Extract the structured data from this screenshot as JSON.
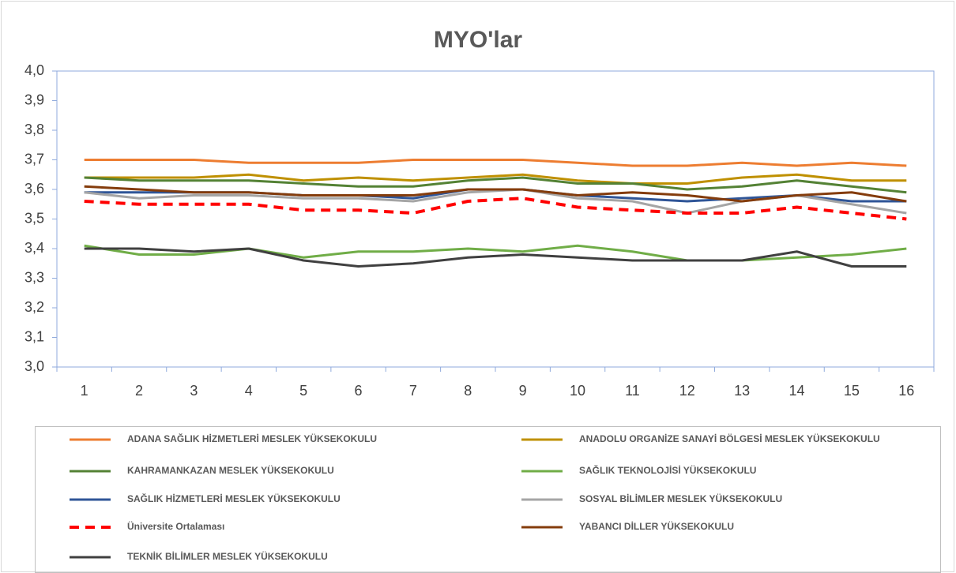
{
  "chart_data": {
    "type": "line",
    "title": "MYO'lar",
    "categories": [
      "1",
      "2",
      "3",
      "4",
      "5",
      "6",
      "7",
      "8",
      "9",
      "10",
      "11",
      "12",
      "13",
      "14",
      "15",
      "16"
    ],
    "ylim": [
      3.0,
      4.0
    ],
    "yticks": [
      {
        "value": 3.0,
        "label": "3,0"
      },
      {
        "value": 3.1,
        "label": "3,1"
      },
      {
        "value": 3.2,
        "label": "3,2"
      },
      {
        "value": 3.3,
        "label": "3,3"
      },
      {
        "value": 3.4,
        "label": "3,4"
      },
      {
        "value": 3.5,
        "label": "3,5"
      },
      {
        "value": 3.6,
        "label": "3,6"
      },
      {
        "value": 3.7,
        "label": "3,7"
      },
      {
        "value": 3.8,
        "label": "3,8"
      },
      {
        "value": 3.9,
        "label": "3,9"
      },
      {
        "value": 4.0,
        "label": "4,0"
      }
    ],
    "grid": false,
    "legend": "bottom",
    "series": [
      {
        "name": "ADANA SAĞLIK HİZMETLERİ MESLEK YÜKSEKOKULU",
        "color": "#ed7d31",
        "values": [
          3.7,
          3.7,
          3.7,
          3.69,
          3.69,
          3.69,
          3.7,
          3.7,
          3.7,
          3.69,
          3.68,
          3.68,
          3.69,
          3.68,
          3.69,
          3.68
        ]
      },
      {
        "name": "ANADOLU ORGANİZE SANAYİ BÖLGESİ MESLEK YÜKSEKOKULU",
        "color": "#bf9000",
        "values": [
          3.64,
          3.64,
          3.64,
          3.65,
          3.63,
          3.64,
          3.63,
          3.64,
          3.65,
          3.63,
          3.62,
          3.62,
          3.64,
          3.65,
          3.63,
          3.63
        ]
      },
      {
        "name": "KAHRAMANKAZAN MESLEK YÜKSEKOKULU",
        "color": "#548235",
        "values": [
          3.64,
          3.63,
          3.63,
          3.63,
          3.62,
          3.61,
          3.61,
          3.63,
          3.64,
          3.62,
          3.62,
          3.6,
          3.61,
          3.63,
          3.61,
          3.59
        ]
      },
      {
        "name": "SAĞLIK TEKNOLOJİSİ YÜKSEKOKULU",
        "color": "#70ad47",
        "values": [
          3.41,
          3.38,
          3.38,
          3.4,
          3.37,
          3.39,
          3.39,
          3.4,
          3.39,
          3.41,
          3.39,
          3.36,
          3.36,
          3.37,
          3.38,
          3.4
        ]
      },
      {
        "name": "SAĞLIK HİZMETLERİ MESLEK YÜKSEKOKULU",
        "color": "#2f5597",
        "values": [
          3.59,
          3.59,
          3.59,
          3.59,
          3.58,
          3.58,
          3.57,
          3.6,
          3.6,
          3.58,
          3.57,
          3.56,
          3.57,
          3.58,
          3.56,
          3.56
        ]
      },
      {
        "name": "SOSYAL BİLİMLER MESLEK YÜKSEKOKULU",
        "color": "#a5a5a5",
        "values": [
          3.59,
          3.57,
          3.58,
          3.58,
          3.57,
          3.57,
          3.56,
          3.59,
          3.6,
          3.57,
          3.56,
          3.52,
          3.56,
          3.58,
          3.55,
          3.52
        ]
      },
      {
        "name": "Üniversite Ortalaması",
        "color": "#ff0000",
        "dashed": true,
        "values": [
          3.56,
          3.55,
          3.55,
          3.55,
          3.53,
          3.53,
          3.52,
          3.56,
          3.57,
          3.54,
          3.53,
          3.52,
          3.52,
          3.54,
          3.52,
          3.5
        ]
      },
      {
        "name": "YABANCI DİLLER YÜKSEKOKULU",
        "color": "#843c0c",
        "values": [
          3.61,
          3.6,
          3.59,
          3.59,
          3.58,
          3.58,
          3.58,
          3.6,
          3.6,
          3.58,
          3.59,
          3.58,
          3.56,
          3.58,
          3.59,
          3.56
        ]
      },
      {
        "name": "TEKNİK BİLİMLER MESLEK YÜKSEKOKULU",
        "color": "#404040",
        "values": [
          3.4,
          3.4,
          3.39,
          3.4,
          3.36,
          3.34,
          3.35,
          3.37,
          3.38,
          3.37,
          3.36,
          3.36,
          3.36,
          3.39,
          3.34,
          3.34
        ]
      }
    ]
  }
}
